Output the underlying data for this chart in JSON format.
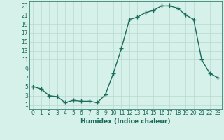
{
  "x": [
    0,
    1,
    2,
    3,
    4,
    5,
    6,
    7,
    8,
    9,
    10,
    11,
    12,
    13,
    14,
    15,
    16,
    17,
    18,
    19,
    20,
    21,
    22,
    23
  ],
  "y": [
    5,
    4.5,
    3,
    2.8,
    1.5,
    2,
    1.8,
    1.8,
    1.5,
    3.2,
    8,
    13.5,
    20,
    20.5,
    21.5,
    22,
    23,
    23,
    22.5,
    21,
    20,
    11,
    8,
    7
  ],
  "line_color": "#1a6b5a",
  "marker": "+",
  "marker_size": 4,
  "marker_lw": 1.0,
  "bg_color": "#d6f0ea",
  "grid_color": "#b8d8d0",
  "xlabel": "Humidex (Indice chaleur)",
  "xlim": [
    -0.5,
    23.5
  ],
  "ylim": [
    0,
    24
  ],
  "yticks": [
    1,
    3,
    5,
    7,
    9,
    11,
    13,
    15,
    17,
    19,
    21,
    23
  ],
  "xticks": [
    0,
    1,
    2,
    3,
    4,
    5,
    6,
    7,
    8,
    9,
    10,
    11,
    12,
    13,
    14,
    15,
    16,
    17,
    18,
    19,
    20,
    21,
    22,
    23
  ],
  "xtick_labels": [
    "0",
    "1",
    "2",
    "3",
    "4",
    "5",
    "6",
    "7",
    "8",
    "9",
    "10",
    "11",
    "12",
    "13",
    "14",
    "15",
    "16",
    "17",
    "18",
    "19",
    "20",
    "21",
    "22",
    "23"
  ],
  "linewidth": 1.0,
  "tick_fontsize": 5.5,
  "xlabel_fontsize": 6.5
}
